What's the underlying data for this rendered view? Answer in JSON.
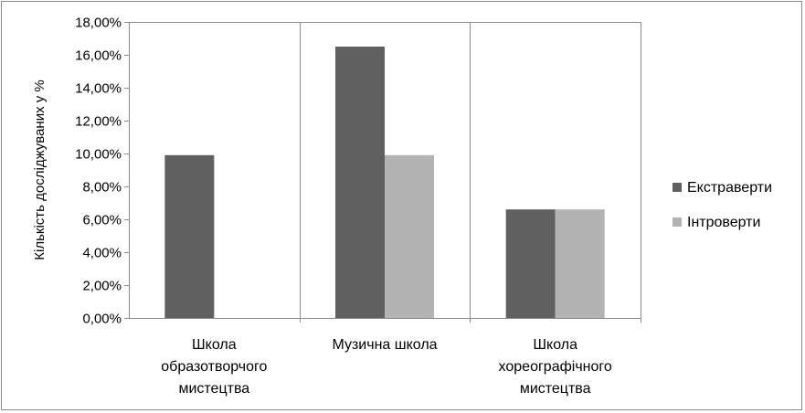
{
  "chart_data": {
    "type": "bar",
    "title": "",
    "xlabel": "",
    "ylabel": "Кількість досліджуваних у %",
    "ylim": [
      0,
      18
    ],
    "y_ticks": [
      "0,00%",
      "2,00%",
      "4,00%",
      "6,00%",
      "8,00%",
      "10,00%",
      "12,00%",
      "14,00%",
      "16,00%",
      "18,00%"
    ],
    "categories": [
      [
        "Школа",
        "образотворчого",
        "мистецтва"
      ],
      [
        "Музична школа"
      ],
      [
        "Школа",
        "хореографічного",
        "мистецтва"
      ]
    ],
    "series": [
      {
        "name": "Екстраверти",
        "values": [
          9.9,
          16.5,
          6.6
        ]
      },
      {
        "name": "Інтроверти",
        "values": [
          0,
          9.9,
          6.6
        ]
      }
    ],
    "colors": [
      "#606060",
      "#b3b3b3"
    ],
    "grid": "vertical category separators",
    "legend": "right"
  }
}
